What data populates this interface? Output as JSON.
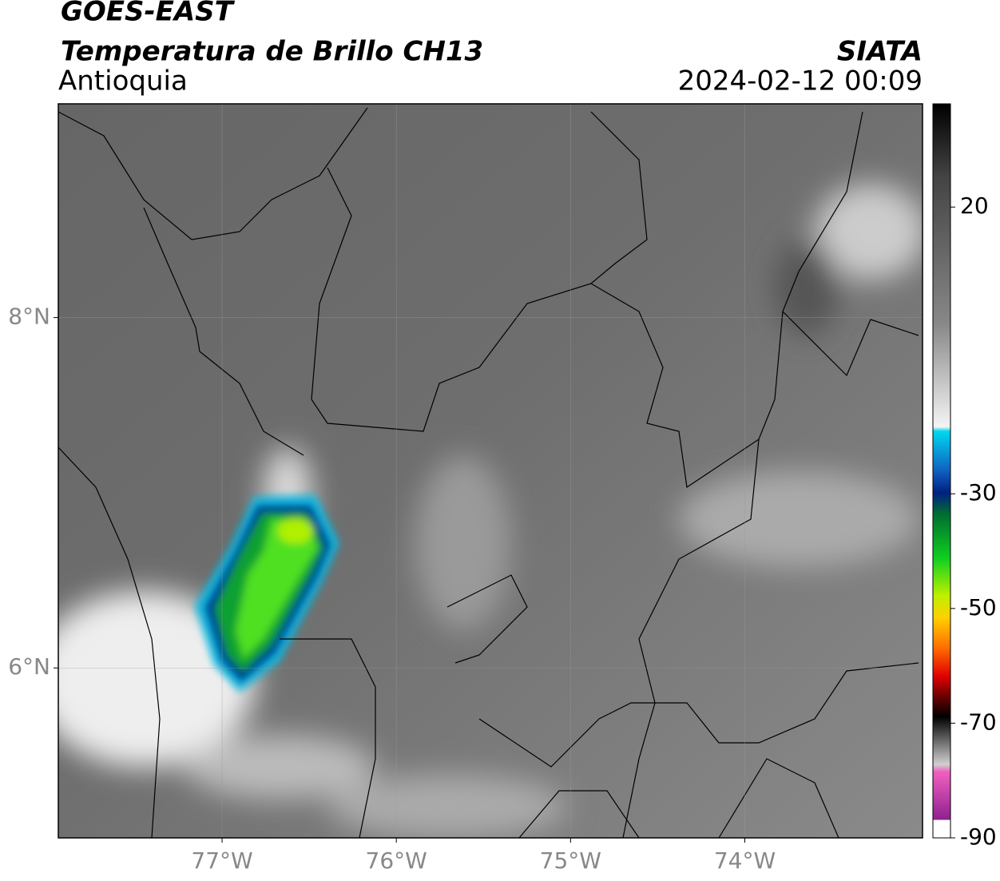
{
  "header": {
    "title": "GOES-EAST",
    "subtitle": "Temperatura de Brillo CH13",
    "region": "Antioquia",
    "source": "SIATA",
    "datetime": "2024-02-12 00:09"
  },
  "map": {
    "xlim": [
      -77.94,
      -72.98
    ],
    "ylim": [
      5.03,
      9.22
    ],
    "xticks": [
      {
        "value": -77,
        "label": "77°W"
      },
      {
        "value": -76,
        "label": "76°W"
      },
      {
        "value": -75,
        "label": "75°W"
      },
      {
        "value": -74,
        "label": "74°W"
      }
    ],
    "yticks": [
      {
        "value": 8,
        "label": "8°N"
      },
      {
        "value": 6,
        "label": "6°N"
      }
    ]
  },
  "colorbar": {
    "lim": [
      -90,
      38
    ],
    "ticks": [
      20,
      -30,
      -50,
      -70,
      -90
    ]
  }
}
